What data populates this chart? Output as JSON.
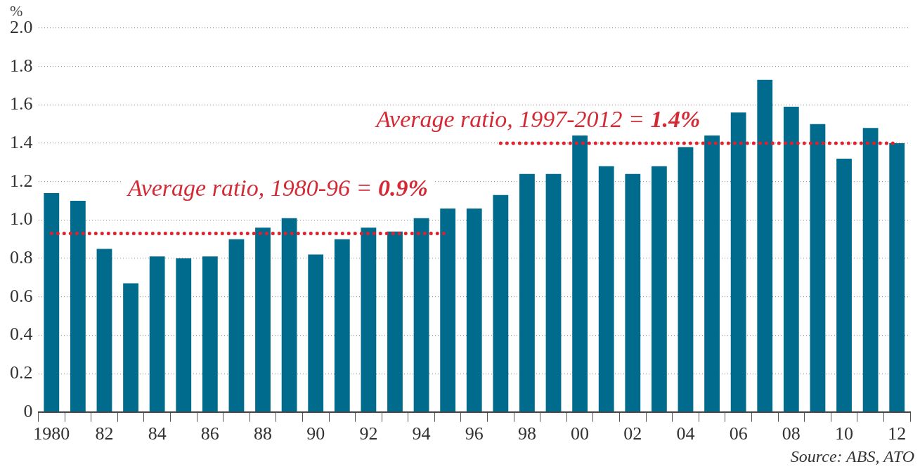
{
  "chart_data": {
    "type": "bar",
    "ylabel": "%",
    "categories": [
      "1980",
      null,
      "82",
      null,
      "84",
      null,
      "86",
      null,
      "88",
      null,
      "90",
      null,
      "92",
      null,
      "94",
      null,
      "96",
      null,
      "98",
      null,
      "00",
      null,
      "02",
      null,
      "04",
      null,
      "06",
      null,
      "08",
      null,
      "10",
      null,
      "12"
    ],
    "series": [
      {
        "color": "#006b8c",
        "values": [
          1.14,
          1.1,
          0.85,
          0.67,
          0.81,
          0.8,
          0.81,
          0.9,
          0.96,
          1.01,
          0.82,
          0.9,
          0.96,
          0.94,
          1.01,
          1.06,
          1.06,
          1.13,
          1.24,
          1.24,
          1.44,
          1.28,
          1.24,
          1.28,
          1.38,
          1.44,
          1.56,
          1.73,
          1.59,
          1.5,
          1.32,
          1.48,
          1.4
        ]
      },
      {
        "type": "line",
        "color": "#e0202c",
        "line_style": "dotted",
        "values": [
          0.93,
          0.93,
          0.93,
          0.93,
          0.93,
          0.93,
          0.93,
          0.93,
          0.93,
          0.93,
          0.93,
          0.93,
          0.93,
          0.93,
          0.93,
          0.93,
          null,
          null,
          null,
          null,
          null,
          null,
          null,
          null,
          null,
          null,
          null,
          null,
          null,
          null,
          null,
          null,
          null
        ]
      },
      {
        "type": "line",
        "color": "#e0202c",
        "line_style": "dotted",
        "values": [
          null,
          null,
          null,
          null,
          null,
          null,
          null,
          null,
          null,
          null,
          null,
          null,
          null,
          null,
          null,
          null,
          null,
          1.4,
          1.4,
          1.4,
          1.4,
          1.4,
          1.4,
          1.4,
          1.4,
          1.4,
          1.4,
          1.4,
          1.4,
          1.4,
          1.4,
          1.4,
          1.4
        ]
      }
    ],
    "ylim": [
      0,
      2.0
    ],
    "yticks": [
      0,
      0.2,
      0.4,
      0.6,
      0.8,
      {
        "value": 1.0,
        "label": "1.0"
      },
      1.2,
      1.4,
      1.6,
      1.8,
      {
        "value": 2.0,
        "label": "2.0"
      }
    ],
    "grid": "y",
    "legend": false,
    "annotations": [
      "Average ratio, 1980-96 = 0.9%",
      "Average ratio, 1997-2012 = 1.4%",
      "Source: ABS, ATO"
    ]
  }
}
